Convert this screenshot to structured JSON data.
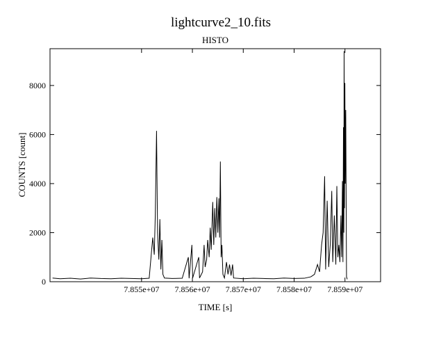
{
  "chart_data": {
    "type": "line",
    "title": "lightcurve2_10.fits",
    "subtitle": "HISTO",
    "x_label": "TIME [s]",
    "y_label": "COUNTS [count]",
    "color": "#000000",
    "xlim": [
      78532000,
      78597000
    ],
    "ylim": [
      0,
      9500
    ],
    "xticks": [
      {
        "value": 78550000,
        "label": "7.855e+07"
      },
      {
        "value": 78560000,
        "label": "7.856e+07"
      },
      {
        "value": 78570000,
        "label": "7.857e+07"
      },
      {
        "value": 78580000,
        "label": "7.858e+07"
      },
      {
        "value": 78590000,
        "label": "7.859e+07"
      }
    ],
    "yticks": [
      0,
      2000,
      4000,
      6000,
      8000
    ],
    "x": [
      78532500,
      78534000,
      78536000,
      78538000,
      78540000,
      78542000,
      78544000,
      78546000,
      78548000,
      78550000,
      78551500,
      78552200,
      78552500,
      78552700,
      78552950,
      78553150,
      78553400,
      78553600,
      78553800,
      78554000,
      78554200,
      78554500,
      78556000,
      78558000,
      78559200,
      78559350,
      78559900,
      78560050,
      78561250,
      78561400,
      78562000,
      78562300,
      78562500,
      78562800,
      78563000,
      78563300,
      78563500,
      78563700,
      78564000,
      78564200,
      78564400,
      78564600,
      78564800,
      78565000,
      78565200,
      78565350,
      78565500,
      78565650,
      78565800,
      78566000,
      78566300,
      78566700,
      78567000,
      78567300,
      78567600,
      78567900,
      78568100,
      78570000,
      78572000,
      78574000,
      78576000,
      78578000,
      78580000,
      78582000,
      78583300,
      78584000,
      78584600,
      78585000,
      78585400,
      78585700,
      78586000,
      78586200,
      78586500,
      78586800,
      78587100,
      78587400,
      78587600,
      78587900,
      78588200,
      78588400,
      78588600,
      78588800,
      78589000,
      78589200,
      78589350,
      78589500,
      78589600,
      78589700,
      78589780,
      78589830,
      78589900,
      78589980,
      78590050,
      78590150,
      78590300,
      78590450
    ],
    "values": [
      150,
      120,
      140,
      110,
      150,
      130,
      120,
      140,
      130,
      120,
      140,
      1800,
      1100,
      2700,
      6150,
      2000,
      900,
      2550,
      500,
      1700,
      300,
      150,
      130,
      140,
      1000,
      140,
      1500,
      150,
      1000,
      150,
      400,
      1500,
      600,
      900,
      1700,
      1000,
      2200,
      1300,
      3250,
      1500,
      3000,
      1800,
      3450,
      2000,
      3400,
      1800,
      4900,
      1000,
      1500,
      300,
      150,
      800,
      300,
      700,
      250,
      700,
      150,
      120,
      140,
      130,
      120,
      150,
      130,
      140,
      200,
      300,
      700,
      400,
      1500,
      2000,
      4300,
      500,
      3300,
      600,
      1500,
      3700,
      800,
      2700,
      700,
      3900,
      1000,
      1500,
      800,
      2700,
      1000,
      4100,
      800,
      6300,
      2000,
      9400,
      3000,
      8100,
      4000,
      7000,
      200,
      100
    ]
  }
}
